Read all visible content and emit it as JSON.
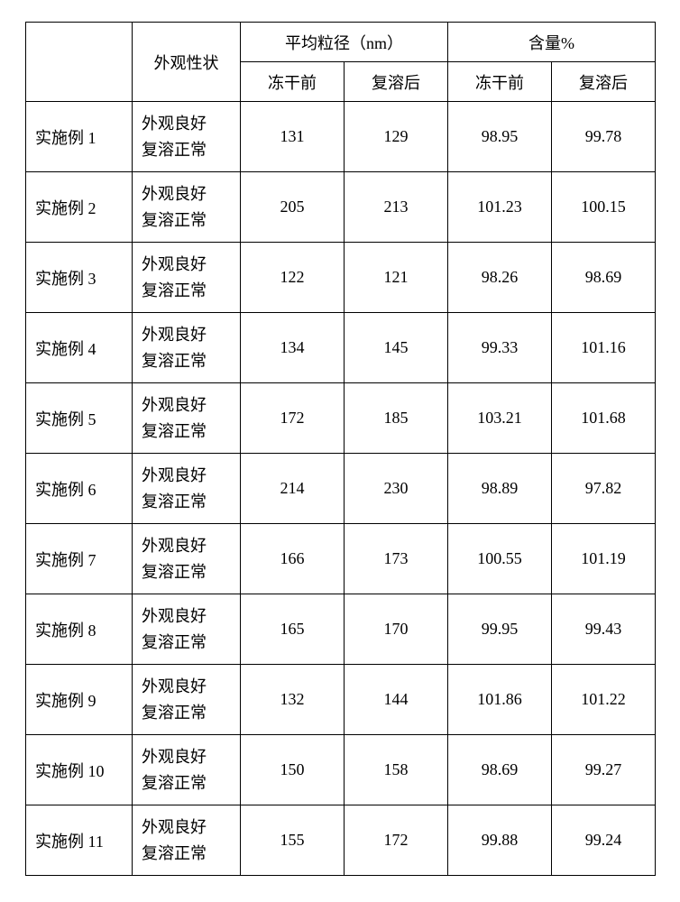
{
  "headers": {
    "blank": "",
    "appearance": "外观性状",
    "particle_group": "平均粒径（nm）",
    "content_group": "含量%",
    "before": "冻干前",
    "after": "复溶后"
  },
  "rows": [
    {
      "label": "实施例 1",
      "appearance_l1": "外观良好",
      "appearance_l2": "复溶正常",
      "p_before": "131",
      "p_after": "129",
      "c_before": "98.95",
      "c_after": "99.78"
    },
    {
      "label": "实施例 2",
      "appearance_l1": "外观良好",
      "appearance_l2": "复溶正常",
      "p_before": "205",
      "p_after": "213",
      "c_before": "101.23",
      "c_after": "100.15"
    },
    {
      "label": "实施例 3",
      "appearance_l1": "外观良好",
      "appearance_l2": "复溶正常",
      "p_before": "122",
      "p_after": "121",
      "c_before": "98.26",
      "c_after": "98.69"
    },
    {
      "label": "实施例 4",
      "appearance_l1": "外观良好",
      "appearance_l2": "复溶正常",
      "p_before": "134",
      "p_after": "145",
      "c_before": "99.33",
      "c_after": "101.16"
    },
    {
      "label": "实施例 5",
      "appearance_l1": "外观良好",
      "appearance_l2": "复溶正常",
      "p_before": "172",
      "p_after": "185",
      "c_before": "103.21",
      "c_after": "101.68"
    },
    {
      "label": "实施例 6",
      "appearance_l1": "外观良好",
      "appearance_l2": "复溶正常",
      "p_before": "214",
      "p_after": "230",
      "c_before": "98.89",
      "c_after": "97.82"
    },
    {
      "label": "实施例 7",
      "appearance_l1": "外观良好",
      "appearance_l2": "复溶正常",
      "p_before": "166",
      "p_after": "173",
      "c_before": "100.55",
      "c_after": "101.19"
    },
    {
      "label": "实施例 8",
      "appearance_l1": "外观良好",
      "appearance_l2": "复溶正常",
      "p_before": "165",
      "p_after": "170",
      "c_before": "99.95",
      "c_after": "99.43"
    },
    {
      "label": "实施例 9",
      "appearance_l1": "外观良好",
      "appearance_l2": "复溶正常",
      "p_before": "132",
      "p_after": "144",
      "c_before": "101.86",
      "c_after": "101.22"
    },
    {
      "label": "实施例 10",
      "appearance_l1": "外观良好",
      "appearance_l2": "复溶正常",
      "p_before": "150",
      "p_after": "158",
      "c_before": "98.69",
      "c_after": "99.27"
    },
    {
      "label": "实施例 11",
      "appearance_l1": "外观良好",
      "appearance_l2": "复溶正常",
      "p_before": "155",
      "p_after": "172",
      "c_before": "99.88",
      "c_after": "99.24"
    }
  ]
}
